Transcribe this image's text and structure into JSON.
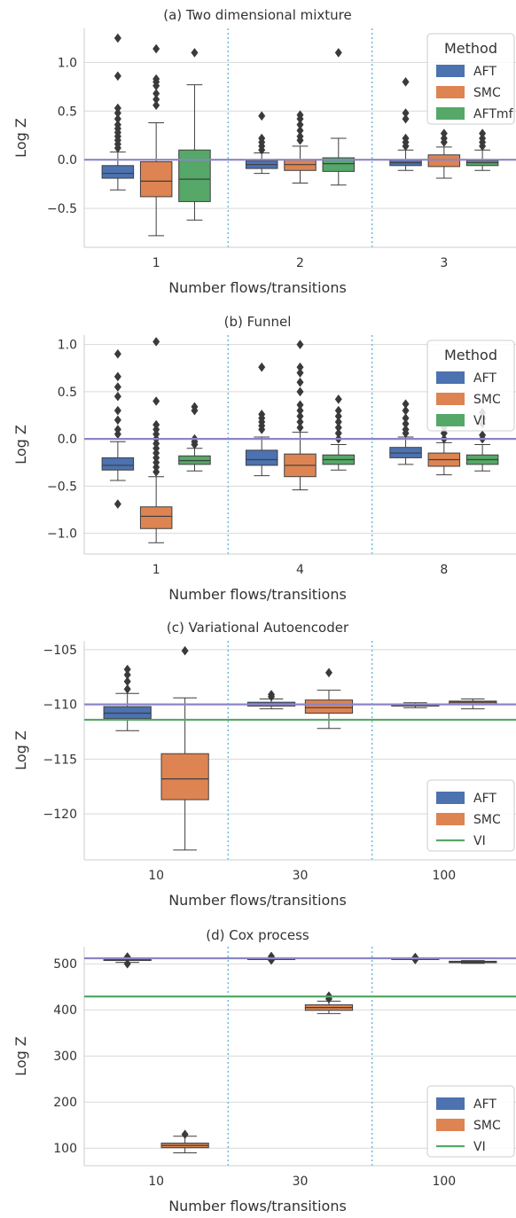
{
  "figure": {
    "colors": {
      "AFT": "#4c72b0",
      "SMC": "#dd8452",
      "AFTmf": "#55a868",
      "VI": "#55a868",
      "reference_line": "#8c84c8",
      "divider": "#6cbad8",
      "grid": "#d9d9d9",
      "box_edge": "#3f3f3f"
    }
  },
  "chart_data": [
    {
      "type": "box",
      "title": "(a) Two dimensional mixture",
      "xlabel": "Number flows/transitions",
      "ylabel": "Log Z",
      "categories": [
        "1",
        "2",
        "3"
      ],
      "ylim": [
        -0.9,
        1.35
      ],
      "yticks": [
        -0.5,
        0.0,
        0.5,
        1.0
      ],
      "ytick_labels": [
        "−0.5",
        "0.0",
        "0.5",
        "1.0"
      ],
      "grid": true,
      "reference_line": 0.0,
      "legend": {
        "title": "Method",
        "position": "top-right",
        "entries": [
          {
            "label": "AFT",
            "kind": "patch",
            "color": "#4c72b0"
          },
          {
            "label": "SMC",
            "kind": "patch",
            "color": "#dd8452"
          },
          {
            "label": "AFTmf",
            "kind": "patch",
            "color": "#55a868"
          }
        ]
      },
      "series": [
        {
          "name": "AFT",
          "color": "#4c72b0",
          "boxes": [
            {
              "whislo": -0.31,
              "q1": -0.19,
              "med": -0.14,
              "q3": -0.06,
              "whishi": 0.08,
              "fliers": [
                0.12,
                0.16,
                0.2,
                0.24,
                0.28,
                0.32,
                0.36,
                0.42,
                0.48,
                0.53,
                0.86,
                1.25
              ]
            },
            {
              "whislo": -0.14,
              "q1": -0.09,
              "med": -0.05,
              "q3": -0.01,
              "whishi": 0.07,
              "fliers": [
                0.1,
                0.14,
                0.18,
                0.22,
                0.45
              ]
            },
            {
              "whislo": -0.11,
              "q1": -0.06,
              "med": -0.03,
              "q3": 0.0,
              "whishi": 0.1,
              "fliers": [
                0.14,
                0.18,
                0.22,
                0.42,
                0.48,
                0.8
              ]
            }
          ]
        },
        {
          "name": "SMC",
          "color": "#dd8452",
          "boxes": [
            {
              "whislo": -0.78,
              "q1": -0.38,
              "med": -0.22,
              "q3": -0.02,
              "whishi": 0.38,
              "fliers": [
                0.56,
                0.62,
                0.68,
                0.76,
                0.8,
                0.83,
                1.14
              ]
            },
            {
              "whislo": -0.24,
              "q1": -0.11,
              "med": -0.05,
              "q3": 0.0,
              "whishi": 0.14,
              "fliers": [
                0.2,
                0.24,
                0.3,
                0.36,
                0.42,
                0.46
              ]
            },
            {
              "whislo": -0.19,
              "q1": -0.07,
              "med": 0.0,
              "q3": 0.05,
              "whishi": 0.13,
              "fliers": [
                0.18,
                0.22,
                0.27
              ]
            }
          ]
        },
        {
          "name": "AFTmf",
          "color": "#55a868",
          "boxes": [
            {
              "whislo": -0.62,
              "q1": -0.43,
              "med": -0.2,
              "q3": 0.1,
              "whishi": 0.77,
              "fliers": [
                1.1
              ]
            },
            {
              "whislo": -0.26,
              "q1": -0.12,
              "med": -0.04,
              "q3": 0.02,
              "whishi": 0.22,
              "fliers": [
                1.1
              ]
            },
            {
              "whislo": -0.11,
              "q1": -0.06,
              "med": -0.03,
              "q3": -0.01,
              "whishi": 0.1,
              "fliers": [
                0.14,
                0.18,
                0.22,
                0.27
              ]
            }
          ]
        }
      ]
    },
    {
      "type": "box",
      "title": "(b) Funnel",
      "xlabel": "Number flows/transitions",
      "ylabel": "Log Z",
      "categories": [
        "1",
        "4",
        "8"
      ],
      "ylim": [
        -1.22,
        1.1
      ],
      "yticks": [
        -1.0,
        -0.5,
        0.0,
        0.5,
        1.0
      ],
      "ytick_labels": [
        "−1.0",
        "−0.5",
        "0.0",
        "0.5",
        "1.0"
      ],
      "grid": true,
      "reference_line": 0.0,
      "legend": {
        "title": "Method",
        "position": "top-right",
        "entries": [
          {
            "label": "AFT",
            "kind": "patch",
            "color": "#4c72b0"
          },
          {
            "label": "SMC",
            "kind": "patch",
            "color": "#dd8452"
          },
          {
            "label": "VI",
            "kind": "patch",
            "color": "#55a868"
          }
        ]
      },
      "series": [
        {
          "name": "AFT",
          "color": "#4c72b0",
          "boxes": [
            {
              "whislo": -0.44,
              "q1": -0.33,
              "med": -0.28,
              "q3": -0.2,
              "whishi": -0.03,
              "fliers": [
                0.05,
                0.1,
                0.2,
                0.3,
                0.45,
                0.55,
                0.66,
                0.9,
                -0.69
              ]
            },
            {
              "whislo": -0.39,
              "q1": -0.28,
              "med": -0.22,
              "q3": -0.12,
              "whishi": 0.02,
              "fliers": [
                0.1,
                0.14,
                0.18,
                0.22,
                0.26,
                0.76
              ]
            },
            {
              "whislo": -0.27,
              "q1": -0.2,
              "med": -0.15,
              "q3": -0.09,
              "whishi": 0.02,
              "fliers": [
                0.06,
                0.1,
                0.16,
                0.22,
                0.3,
                0.37
              ]
            }
          ]
        },
        {
          "name": "SMC",
          "color": "#dd8452",
          "boxes": [
            {
              "whislo": -1.1,
              "q1": -0.95,
              "med": -0.82,
              "q3": -0.72,
              "whishi": -0.4,
              "fliers": [
                -0.35,
                -0.3,
                -0.25,
                -0.2,
                -0.15,
                -0.1,
                -0.05,
                0.0,
                0.05,
                0.1,
                0.15,
                0.4,
                1.03
              ]
            },
            {
              "whislo": -0.54,
              "q1": -0.4,
              "med": -0.28,
              "q3": -0.16,
              "whishi": 0.07,
              "fliers": [
                0.12,
                0.18,
                0.24,
                0.3,
                0.36,
                0.5,
                0.6,
                0.7,
                0.76,
                1.0
              ]
            },
            {
              "whislo": -0.38,
              "q1": -0.29,
              "med": -0.22,
              "q3": -0.15,
              "whishi": -0.04,
              "fliers": [
                0.0,
                0.06,
                0.12,
                0.18
              ]
            }
          ]
        },
        {
          "name": "VI",
          "color": "#55a868",
          "boxes": [
            {
              "whislo": -0.34,
              "q1": -0.27,
              "med": -0.23,
              "q3": -0.18,
              "whishi": -0.1,
              "fliers": [
                -0.06,
                -0.03,
                0.0,
                0.3,
                0.34
              ]
            },
            {
              "whislo": -0.33,
              "q1": -0.27,
              "med": -0.22,
              "q3": -0.17,
              "whishi": -0.06,
              "fliers": [
                0.0,
                0.06,
                0.12,
                0.18,
                0.24,
                0.3,
                0.42
              ]
            },
            {
              "whislo": -0.34,
              "q1": -0.27,
              "med": -0.22,
              "q3": -0.17,
              "whishi": -0.06,
              "fliers": [
                0.0,
                0.04,
                0.16,
                0.22,
                0.28
              ]
            }
          ]
        }
      ]
    },
    {
      "type": "box",
      "title": "(c) Variational Autoencoder",
      "xlabel": "Number flows/transitions",
      "ylabel": "Log Z",
      "categories": [
        "10",
        "30",
        "100"
      ],
      "ylim": [
        -124.2,
        -104.2
      ],
      "yticks": [
        -120,
        -115,
        -110,
        -105
      ],
      "ytick_labels": [
        "−120",
        "−115",
        "−110",
        "−105"
      ],
      "grid": true,
      "reference_line": -110.0,
      "vi_line": -111.4,
      "legend": {
        "title": "",
        "position": "bottom-right",
        "entries": [
          {
            "label": "AFT",
            "kind": "patch",
            "color": "#4c72b0"
          },
          {
            "label": "SMC",
            "kind": "patch",
            "color": "#dd8452"
          },
          {
            "label": "VI",
            "kind": "line",
            "color": "#55a868"
          }
        ]
      },
      "series": [
        {
          "name": "AFT",
          "color": "#4c72b0",
          "boxes": [
            {
              "whislo": -112.4,
              "q1": -111.3,
              "med": -110.8,
              "q3": -110.2,
              "whishi": -109.0,
              "fliers": [
                -108.6,
                -107.9,
                -107.3,
                -106.8
              ]
            },
            {
              "whislo": -110.4,
              "q1": -110.15,
              "med": -110.0,
              "q3": -109.8,
              "whishi": -109.5,
              "fliers": [
                -109.3,
                -109.1
              ]
            },
            {
              "whislo": -110.3,
              "q1": -110.15,
              "med": -110.05,
              "q3": -109.95,
              "whishi": -109.85,
              "fliers": []
            }
          ]
        },
        {
          "name": "SMC",
          "color": "#dd8452",
          "boxes": [
            {
              "whislo": -123.3,
              "q1": -118.7,
              "med": -116.8,
              "q3": -114.5,
              "whishi": -109.4,
              "fliers": [
                -105.1
              ]
            },
            {
              "whislo": -112.2,
              "q1": -110.8,
              "med": -110.3,
              "q3": -109.6,
              "whishi": -108.7,
              "fliers": [
                -107.1
              ]
            },
            {
              "whislo": -110.4,
              "q1": -110.0,
              "med": -109.8,
              "q3": -109.7,
              "whishi": -109.5,
              "fliers": []
            }
          ]
        }
      ]
    },
    {
      "type": "box",
      "title": "(d) Cox process",
      "xlabel": "Number flows/transitions",
      "ylabel": "Log Z",
      "categories": [
        "10",
        "30",
        "100"
      ],
      "ylim": [
        62,
        537
      ],
      "yticks": [
        100,
        200,
        300,
        400,
        500
      ],
      "ytick_labels": [
        "100",
        "200",
        "300",
        "400",
        "500"
      ],
      "grid": true,
      "reference_line": 512,
      "vi_line": 429,
      "legend": {
        "title": "",
        "position": "bottom-right",
        "entries": [
          {
            "label": "AFT",
            "kind": "patch",
            "color": "#4c72b0"
          },
          {
            "label": "SMC",
            "kind": "patch",
            "color": "#dd8452"
          },
          {
            "label": "VI",
            "kind": "line",
            "color": "#55a868"
          }
        ]
      },
      "series": [
        {
          "name": "AFT",
          "color": "#4c72b0",
          "boxes": [
            {
              "whislo": 503,
              "q1": 508,
              "med": 509,
              "q3": 510,
              "whishi": 512,
              "fliers": [
                500,
                515
              ]
            },
            {
              "whislo": 509,
              "q1": 510,
              "med": 511,
              "q3": 512,
              "whishi": 513,
              "fliers": [
                508,
                516
              ]
            },
            {
              "whislo": 510,
              "q1": 511,
              "med": 511.5,
              "q3": 512,
              "whishi": 513,
              "fliers": [
                509,
                514
              ]
            }
          ]
        },
        {
          "name": "SMC",
          "color": "#dd8452",
          "boxes": [
            {
              "whislo": 90,
              "q1": 101,
              "med": 106,
              "q3": 111,
              "whishi": 126,
              "fliers": [
                130
              ]
            },
            {
              "whislo": 392,
              "q1": 399,
              "med": 405,
              "q3": 411,
              "whishi": 419,
              "fliers": [
                424,
                430
              ]
            },
            {
              "whislo": 501,
              "q1": 502.5,
              "med": 504,
              "q3": 505.5,
              "whishi": 507,
              "fliers": []
            }
          ]
        }
      ]
    }
  ]
}
